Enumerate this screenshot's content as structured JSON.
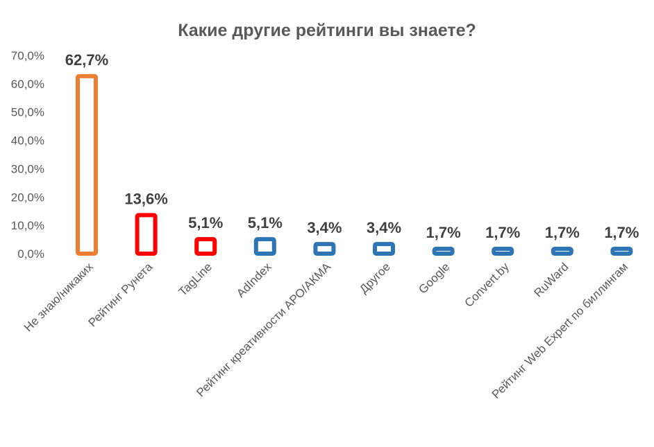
{
  "chart_data": {
    "type": "bar",
    "title": "Какие другие рейтинги вы знаете?",
    "xlabel": "",
    "ylabel": "",
    "ylim": [
      0,
      70
    ],
    "y_ticks": [
      {
        "value": 0,
        "label": "0,0%"
      },
      {
        "value": 10,
        "label": "10,0%"
      },
      {
        "value": 20,
        "label": "20,0%"
      },
      {
        "value": 30,
        "label": "30,0%"
      },
      {
        "value": 40,
        "label": "40,0%"
      },
      {
        "value": 50,
        "label": "50,0%"
      },
      {
        "value": 60,
        "label": "60,0%"
      },
      {
        "value": 70,
        "label": "70,0%"
      }
    ],
    "categories": [
      "Не знаю/никаких",
      "Рейтинг Рунета",
      "TagLine",
      "AdIndex",
      "Рейтинг креативности АРО/АКМА",
      "Другое",
      "Google",
      "Convert.by",
      "RuWard",
      "Рейтинг Web Expert по биллингам"
    ],
    "values": [
      62.7,
      13.6,
      5.1,
      5.1,
      3.4,
      3.4,
      1.7,
      1.7,
      1.7,
      1.7
    ],
    "data_labels": [
      "62,7%",
      "13,6%",
      "5,1%",
      "5,1%",
      "3,4%",
      "3,4%",
      "1,7%",
      "1,7%",
      "1,7%",
      "1,7%"
    ],
    "bar_colors": [
      "#ED7D31",
      "#FF0000",
      "#FF0000",
      "#2E75B6",
      "#2E75B6",
      "#2E75B6",
      "#2E75B6",
      "#2E75B6",
      "#2E75B6",
      "#2E75B6"
    ],
    "bar_style": "outlined",
    "grid": false,
    "legend": "none"
  }
}
